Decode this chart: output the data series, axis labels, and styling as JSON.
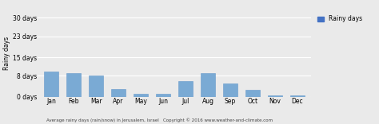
{
  "months": [
    "Jan",
    "Feb",
    "Mar",
    "Apr",
    "May",
    "Jun",
    "Jul",
    "Aug",
    "Sep",
    "Oct",
    "Nov",
    "Dec"
  ],
  "values": [
    9.5,
    9.0,
    8.0,
    3.0,
    1.0,
    1.0,
    6.0,
    9.0,
    5.0,
    2.5,
    0.5,
    0.5
  ],
  "bar_color": "#7aaad4",
  "yticks": [
    0,
    8,
    15,
    23,
    30
  ],
  "ytick_labels": [
    "0 days",
    "8 days",
    "15 days",
    "23 days",
    "30 days"
  ],
  "ylabel": "Rainy days",
  "ylim": [
    0,
    33
  ],
  "legend_label": "Rainy days",
  "legend_color": "#4472c4",
  "footer": "Average rainy days (rain/snow) in Jerusalem, Israel   Copyright © 2016 www.weather-and-climate.com",
  "background_color": "#eaeaea",
  "grid_color": "#ffffff",
  "bar_edge_color": "#6699cc"
}
